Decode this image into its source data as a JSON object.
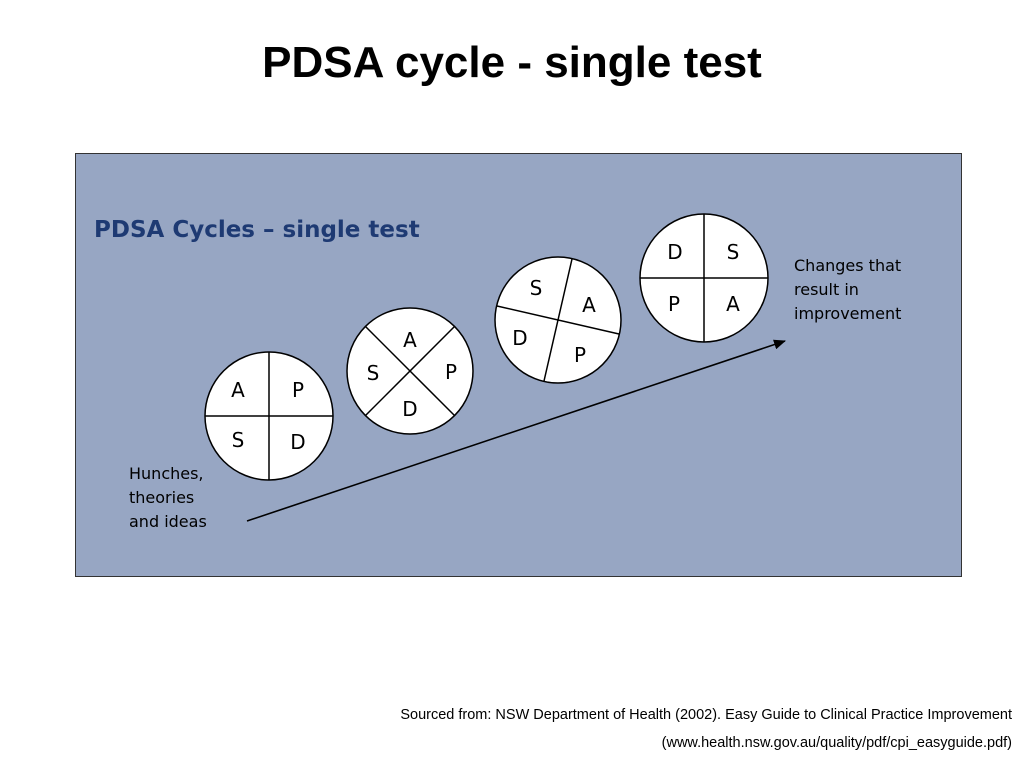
{
  "slide": {
    "title": "PDSA cycle - single test"
  },
  "panel": {
    "title": "PDSA Cycles – single test",
    "background": "#97a6c3",
    "title_color": "#1e3a73"
  },
  "start_note": {
    "lines": [
      "Hunches,",
      "theories",
      "and ideas"
    ]
  },
  "end_note": {
    "lines": [
      "Changes that",
      "result in",
      "improvement"
    ]
  },
  "cycles": [
    {
      "letters": [
        "A",
        "P",
        "D",
        "S"
      ]
    },
    {
      "letters": [
        "A",
        "P",
        "D",
        "S"
      ]
    },
    {
      "letters": [
        "S",
        "A",
        "P",
        "D"
      ]
    },
    {
      "letters": [
        "D",
        "S",
        "A",
        "P"
      ]
    }
  ],
  "source": {
    "line1": "Sourced from: NSW Department of Health (2002). Easy Guide to Clinical Practice Improvement",
    "line2": "(www.health.nsw.gov.au/quality/pdf/cpi_easyguide.pdf)"
  }
}
